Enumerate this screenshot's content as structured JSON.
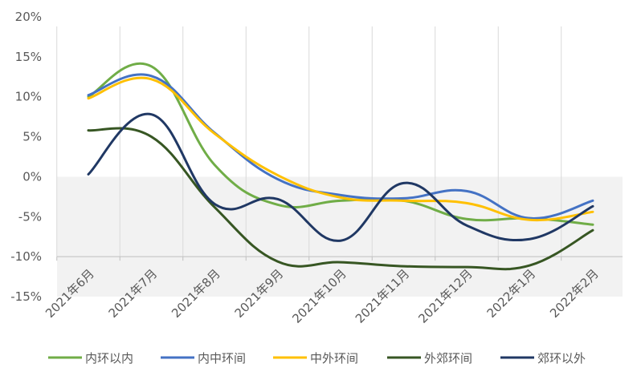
{
  "chart_data": {
    "type": "line",
    "title": "",
    "xlabel": "",
    "ylabel": "",
    "ylim": [
      -15,
      20
    ],
    "y_ticks": [
      20,
      15,
      10,
      5,
      0,
      -5,
      -10,
      -15
    ],
    "y_tick_labels": [
      "20%",
      "15%",
      "10%",
      "5%",
      "0%",
      "-5%",
      "-10%",
      "-15%"
    ],
    "categories": [
      "2021年6月",
      "2021年7月",
      "2021年8月",
      "2021年9月",
      "2021年10月",
      "2021年11月",
      "2021年12月",
      "2022年1月",
      "2022年2月"
    ],
    "grid": "vertical",
    "legend_position": "bottom",
    "series": [
      {
        "name": "内环以内",
        "color": "#70ad47",
        "values": [
          10.0,
          13.8,
          1.5,
          -3.5,
          -3.0,
          -3.0,
          -5.3,
          -5.2,
          -6.0
        ]
      },
      {
        "name": "内中环间",
        "color": "#4472c4",
        "values": [
          10.2,
          12.6,
          5.5,
          -0.3,
          -2.3,
          -2.7,
          -1.8,
          -5.2,
          -3.0
        ]
      },
      {
        "name": "中外环间",
        "color": "#ffc000",
        "values": [
          9.8,
          12.2,
          5.4,
          0.2,
          -2.6,
          -3.0,
          -3.3,
          -5.4,
          -4.4
        ]
      },
      {
        "name": "外郊环间",
        "color": "#375623",
        "values": [
          5.8,
          5.0,
          -3.8,
          -10.6,
          -10.7,
          -11.2,
          -11.3,
          -11.1,
          -6.7
        ]
      },
      {
        "name": "郊环以外",
        "color": "#203864",
        "values": [
          0.3,
          7.8,
          -3.4,
          -2.8,
          -8.0,
          -0.8,
          -6.1,
          -7.8,
          -3.7
        ]
      }
    ]
  }
}
